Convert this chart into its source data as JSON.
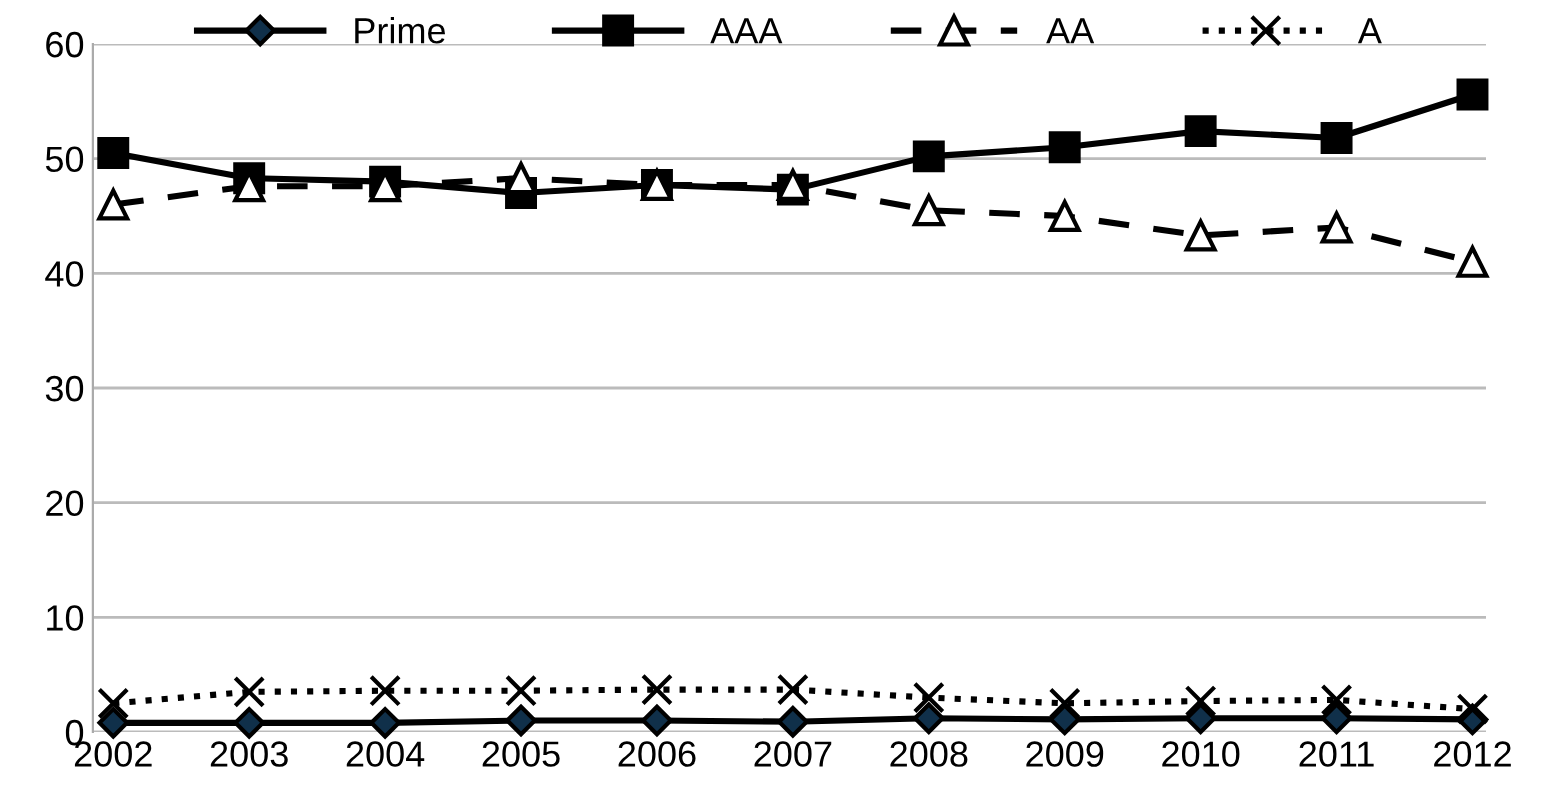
{
  "chart_data": {
    "type": "line",
    "categories": [
      "2002",
      "2003",
      "2004",
      "2005",
      "2006",
      "2007",
      "2008",
      "2009",
      "2010",
      "2011",
      "2012"
    ],
    "series": [
      {
        "name": "Prime",
        "color": "#000000",
        "marker": "diamond",
        "line_style": "solid",
        "values": [
          0.8,
          0.8,
          0.8,
          1.0,
          1.0,
          0.9,
          1.2,
          1.1,
          1.2,
          1.2,
          1.1
        ]
      },
      {
        "name": "AAA",
        "color": "#000000",
        "marker": "square",
        "line_style": "solid",
        "values": [
          50.5,
          48.3,
          48.0,
          47.0,
          47.7,
          47.3,
          50.2,
          51.0,
          52.4,
          51.8,
          55.6
        ]
      },
      {
        "name": "AA",
        "color": "#000000",
        "marker": "triangle",
        "line_style": "dashed",
        "values": [
          46.0,
          47.6,
          47.6,
          48.3,
          47.7,
          47.7,
          45.5,
          45.0,
          43.3,
          44.0,
          41.0
        ]
      },
      {
        "name": "A",
        "color": "#000000",
        "marker": "cross",
        "line_style": "dotted",
        "values": [
          2.5,
          3.5,
          3.6,
          3.6,
          3.7,
          3.7,
          3.0,
          2.5,
          2.7,
          2.8,
          2.0
        ]
      }
    ],
    "ylim": [
      0,
      60
    ],
    "yticks": [
      0,
      10,
      20,
      30,
      40,
      50,
      60
    ],
    "grid": "y",
    "legend": "top"
  }
}
